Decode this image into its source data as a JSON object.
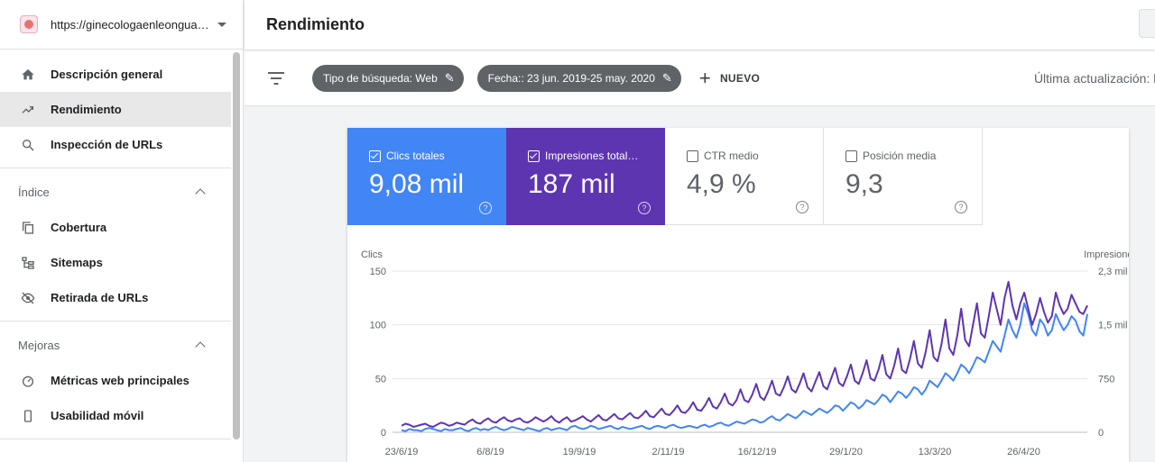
{
  "colors": {
    "clicks": "#4285f4",
    "impressions": "#5e35b1",
    "sidebar_active": "#e8e8e8"
  },
  "property": {
    "url": "https://ginecologaenleongua…",
    "favicon": "site-favicon-icon"
  },
  "sidebar": {
    "top_items": [
      {
        "label": "Descripción general",
        "icon": "home-icon"
      },
      {
        "label": "Rendimiento",
        "icon": "trending-up-icon",
        "active": true
      },
      {
        "label": "Inspección de URLs",
        "icon": "search-icon"
      }
    ],
    "index_section": {
      "title": "Índice",
      "items": [
        {
          "label": "Cobertura",
          "icon": "copy-icon"
        },
        {
          "label": "Sitemaps",
          "icon": "sitemap-icon"
        },
        {
          "label": "Retirada de URLs",
          "icon": "eye-off-icon"
        }
      ]
    },
    "improvements_section": {
      "title": "Mejoras",
      "items": [
        {
          "label": "Métricas web principales",
          "icon": "speed-icon"
        },
        {
          "label": "Usabilidad móvil",
          "icon": "smartphone-icon"
        }
      ]
    }
  },
  "header": {
    "title": "Rendimiento"
  },
  "filters": {
    "chips": [
      {
        "label": "Tipo de búsqueda: Web"
      },
      {
        "label": "Fecha:: 23 jun. 2019-25 may. 2020"
      }
    ],
    "new_label": "NUEVO",
    "last_update": "Última actualización: h"
  },
  "metrics": [
    {
      "label": "Clics totales",
      "value": "9,08 mil",
      "checked": true
    },
    {
      "label": "Impresiones total…",
      "value": "187 mil",
      "checked": true
    },
    {
      "label": "CTR medio",
      "value": "4,9 %",
      "checked": false
    },
    {
      "label": "Posición media",
      "value": "9,3",
      "checked": false
    }
  ],
  "chart_data": {
    "type": "line",
    "y_left_label": "Clics",
    "y_right_label": "Impresiones",
    "y_left_ticks": [
      "150",
      "100",
      "50",
      "0"
    ],
    "y_right_ticks": [
      "2,3 mil",
      "1,5 mil",
      "750",
      "0"
    ],
    "x_tick_labels": [
      "23/6/19",
      "6/8/19",
      "19/9/19",
      "2/11/19",
      "16/12/19",
      "29/1/20",
      "13/3/20",
      "26/4/20"
    ],
    "ylim_left": [
      0,
      150
    ],
    "ylim_right": [
      0,
      2300
    ],
    "grid": true,
    "series": [
      {
        "color": "#4285f4",
        "values": [
          2,
          1,
          3,
          2,
          2,
          1,
          3,
          4,
          3,
          2,
          1,
          3,
          2,
          2,
          3,
          4,
          2,
          1,
          3,
          4,
          2,
          3,
          2,
          4,
          5,
          3,
          2,
          3,
          5,
          4,
          3,
          2,
          4,
          3,
          2,
          1,
          3,
          4,
          2,
          3,
          4,
          3,
          2,
          5,
          6,
          4,
          3,
          4,
          6,
          5,
          3,
          4,
          5,
          6,
          4,
          3,
          5,
          4,
          3,
          4,
          5,
          6,
          4,
          3,
          5,
          6,
          5,
          4,
          6,
          7,
          5,
          4,
          5,
          6,
          5,
          4,
          6,
          7,
          5,
          6,
          8,
          9,
          7,
          6,
          8,
          10,
          9,
          8,
          10,
          12,
          11,
          9,
          10,
          13,
          15,
          12,
          11,
          14,
          17,
          15,
          13,
          16,
          20,
          18,
          16,
          19,
          22,
          20,
          18,
          21,
          25,
          24,
          20,
          24,
          28,
          26,
          22,
          25,
          30,
          28,
          26,
          30,
          35,
          33,
          28,
          33,
          38,
          36,
          32,
          36,
          42,
          40,
          35,
          40,
          48,
          45,
          42,
          48,
          55,
          52,
          48,
          55,
          63,
          60,
          55,
          62,
          70,
          68,
          65,
          75,
          85,
          80,
          75,
          90,
          105,
          95,
          88,
          100,
          120,
          110,
          95,
          90,
          105,
          100,
          90,
          95,
          110,
          102,
          95,
          100,
          108,
          104,
          94,
          90,
          110
        ]
      },
      {
        "color": "#5e35b1",
        "values": [
          6,
          8,
          7,
          5,
          6,
          7,
          8,
          6,
          5,
          7,
          9,
          8,
          6,
          7,
          9,
          8,
          7,
          10,
          12,
          9,
          8,
          11,
          13,
          10,
          9,
          12,
          14,
          11,
          10,
          12,
          13,
          10,
          9,
          11,
          14,
          12,
          10,
          12,
          15,
          11,
          9,
          12,
          14,
          10,
          11,
          13,
          15,
          12,
          10,
          13,
          16,
          12,
          11,
          14,
          17,
          13,
          12,
          15,
          18,
          14,
          13,
          16,
          20,
          15,
          14,
          18,
          22,
          17,
          16,
          20,
          25,
          19,
          18,
          22,
          28,
          21,
          20,
          25,
          32,
          24,
          22,
          28,
          36,
          27,
          25,
          30,
          40,
          30,
          28,
          35,
          45,
          33,
          30,
          38,
          48,
          36,
          34,
          42,
          52,
          40,
          37,
          45,
          55,
          42,
          38,
          47,
          56,
          43,
          40,
          50,
          60,
          46,
          43,
          52,
          63,
          48,
          45,
          55,
          67,
          50,
          48,
          58,
          72,
          54,
          50,
          62,
          78,
          58,
          55,
          68,
          85,
          64,
          60,
          75,
          95,
          70,
          66,
          82,
          105,
          78,
          72,
          90,
          115,
          86,
          80,
          100,
          120,
          92,
          88,
          108,
          130,
          115,
          100,
          125,
          140,
          118,
          105,
          120,
          130,
          115,
          100,
          110,
          125,
          112,
          102,
          108,
          130,
          118,
          110,
          115,
          128,
          120,
          112,
          110,
          118
        ]
      }
    ]
  }
}
